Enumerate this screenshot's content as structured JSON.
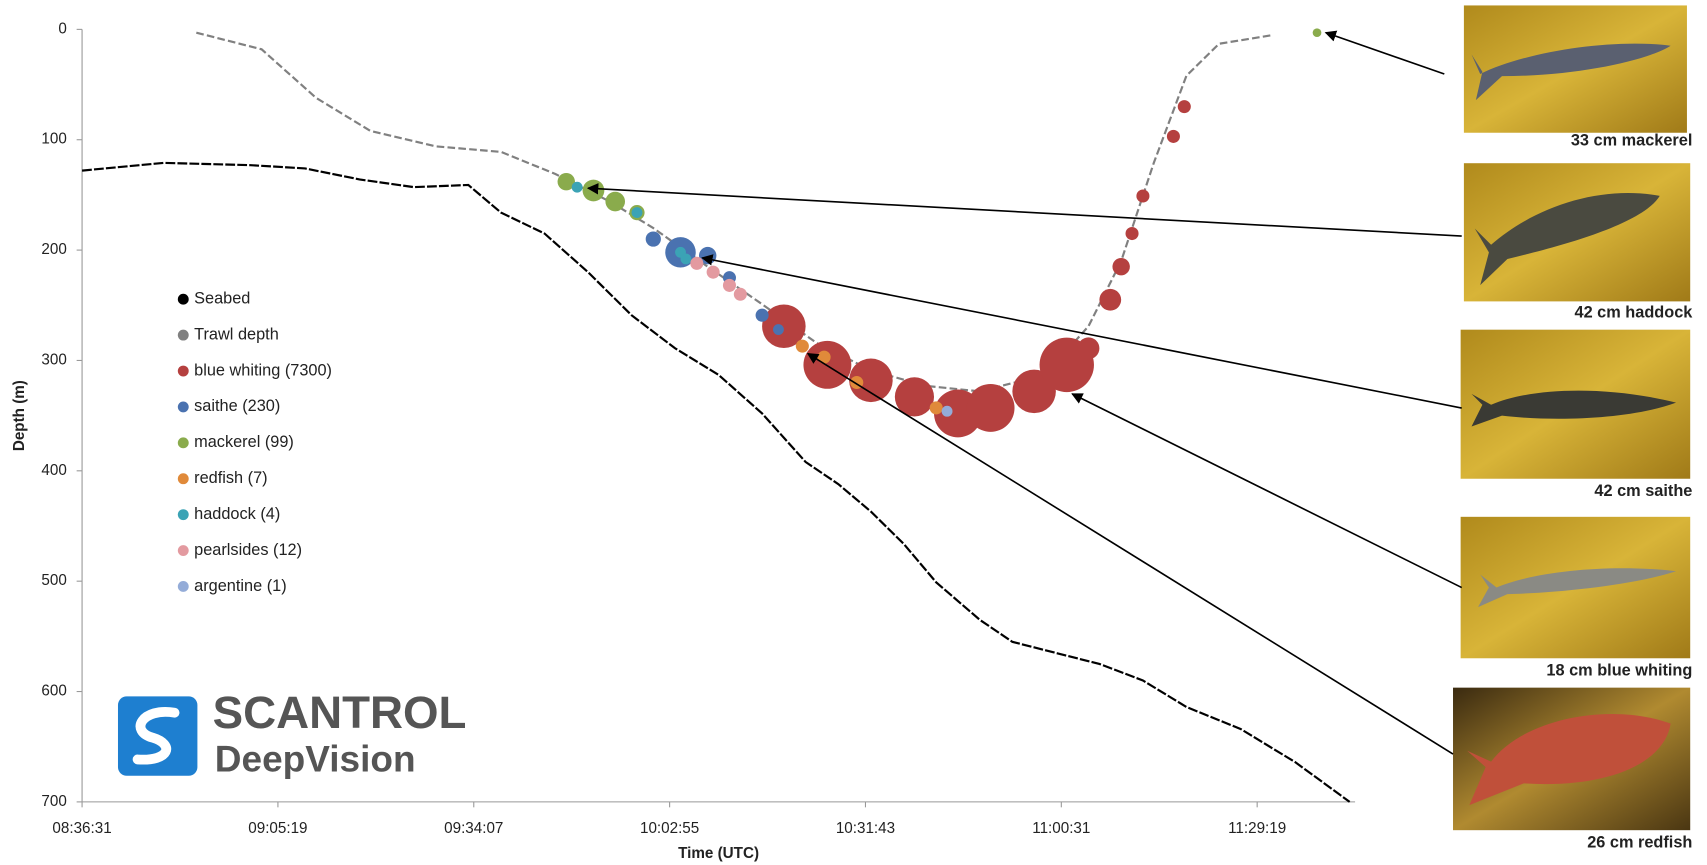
{
  "chart_data": {
    "type": "scatter",
    "x_label": "Time (UTC)",
    "y_label": "Depth (m)",
    "xlim": [
      "08:36:31",
      "11:43:43"
    ],
    "ylim": [
      0,
      700
    ],
    "y_inverted": true,
    "xticks": [
      "08:36:31",
      "09:05:19",
      "09:34:07",
      "10:02:55",
      "10:31:43",
      "11:00:31",
      "11:29:19"
    ],
    "yticks": [
      0,
      100,
      200,
      300,
      400,
      500,
      600,
      700
    ],
    "series": [
      {
        "name": "Seabed",
        "type": "line",
        "color": "#000000",
        "x": [
          "08:36:31",
          "08:48:31",
          "09:01:19",
          "09:09:19",
          "09:17:19",
          "09:25:19",
          "09:33:19",
          "09:38:07",
          "09:44:31",
          "09:50:55",
          "09:57:19",
          "10:03:43",
          "10:10:07",
          "10:16:31",
          "10:22:55",
          "10:27:43",
          "10:32:31",
          "10:37:19",
          "10:42:07",
          "10:48:31",
          "10:53:19",
          "10:59:43",
          "11:06:07",
          "11:12:31",
          "11:18:55",
          "11:26:55",
          "11:34:55",
          "11:42:55"
        ],
        "values": [
          128,
          121,
          123,
          126,
          136,
          143,
          141,
          166,
          185,
          220,
          259,
          289,
          313,
          348,
          392,
          412,
          437,
          466,
          501,
          535,
          555,
          565,
          575,
          590,
          614,
          634,
          664,
          700
        ]
      },
      {
        "name": "Trawl depth",
        "type": "line",
        "color": "#808080",
        "x": [
          "08:53:19",
          "09:02:55",
          "09:10:55",
          "09:18:55",
          "09:28:31",
          "09:38:07",
          "09:46:07",
          "09:54:07",
          "10:00:31",
          "10:08:31",
          "10:16:31",
          "10:24:31",
          "10:32:31",
          "10:40:31",
          "10:48:31",
          "10:58:07",
          "11:04:31",
          "11:09:19",
          "11:14:07",
          "11:18:55",
          "11:23:43",
          "11:31:43"
        ],
        "values": [
          3,
          18,
          62,
          92,
          106,
          111,
          131,
          156,
          180,
          215,
          249,
          284,
          309,
          323,
          328,
          313,
          269,
          210,
          121,
          42,
          13,
          5
        ]
      },
      {
        "name": "blue whiting (7300)",
        "type": "scatter",
        "color": "#b5403f",
        "x": [
          "10:19:43",
          "10:26:07",
          "10:32:31",
          "10:38:55",
          "10:45:19",
          "10:50:07",
          "10:56:31",
          "11:01:19",
          "11:04:31",
          "11:07:43",
          "11:09:19",
          "11:10:55",
          "11:12:31",
          "11:17:00",
          "11:18:36"
        ],
        "values": [
          269,
          304,
          318,
          333,
          348,
          343,
          328,
          304,
          289,
          245,
          215,
          185,
          151,
          97,
          70
        ],
        "sizes": [
          20,
          22,
          20,
          18,
          22,
          22,
          20,
          25,
          10,
          10,
          8,
          6,
          6,
          6,
          6
        ]
      },
      {
        "name": "saithe (230)",
        "type": "scatter",
        "color": "#4a72b0",
        "x": [
          "10:00:31",
          "10:04:31",
          "10:08:31",
          "10:11:43",
          "10:16:31",
          "10:18:55"
        ],
        "values": [
          190,
          202,
          205,
          225,
          259,
          272
        ],
        "sizes": [
          7,
          14,
          8,
          6,
          6,
          5
        ]
      },
      {
        "name": "mackerel (99)",
        "type": "scatter",
        "color": "#8aab4c",
        "x": [
          "09:47:43",
          "09:51:43",
          "09:54:55",
          "09:58:07",
          "11:38:07"
        ],
        "values": [
          138,
          146,
          156,
          166,
          3
        ],
        "sizes": [
          8,
          10,
          9,
          7,
          4
        ]
      },
      {
        "name": "redfish (7)",
        "type": "scatter",
        "color": "#e08a3a",
        "x": [
          "10:22:26",
          "10:25:38",
          "10:30:26",
          "10:42:07"
        ],
        "values": [
          287,
          297,
          320,
          343
        ],
        "sizes": [
          6,
          6,
          6,
          6
        ]
      },
      {
        "name": "haddock (4)",
        "type": "scatter",
        "color": "#3ba3b5",
        "x": [
          "09:49:19",
          "09:58:07",
          "10:04:31",
          "10:05:19"
        ],
        "values": [
          143,
          166,
          202,
          208
        ],
        "sizes": [
          5,
          5,
          5,
          5
        ]
      },
      {
        "name": "pearlsides (12)",
        "type": "scatter",
        "color": "#e39aa0",
        "x": [
          "10:06:55",
          "10:09:19",
          "10:11:43",
          "10:13:19"
        ],
        "values": [
          212,
          220,
          232,
          240
        ],
        "sizes": [
          6,
          6,
          6,
          6
        ]
      },
      {
        "name": "argentine (1)",
        "type": "scatter",
        "color": "#94acd8",
        "x": [
          "10:43:43"
        ],
        "values": [
          346
        ],
        "sizes": [
          5
        ]
      }
    ]
  },
  "images": [
    {
      "label": "33 cm mackerel"
    },
    {
      "label": "42 cm haddock"
    },
    {
      "label": "42 cm saithe"
    },
    {
      "label": "18 cm blue whiting"
    },
    {
      "label": "26 cm redfish"
    }
  ],
  "logo": {
    "title": "SCANTROL",
    "subtitle": "DeepVision"
  }
}
